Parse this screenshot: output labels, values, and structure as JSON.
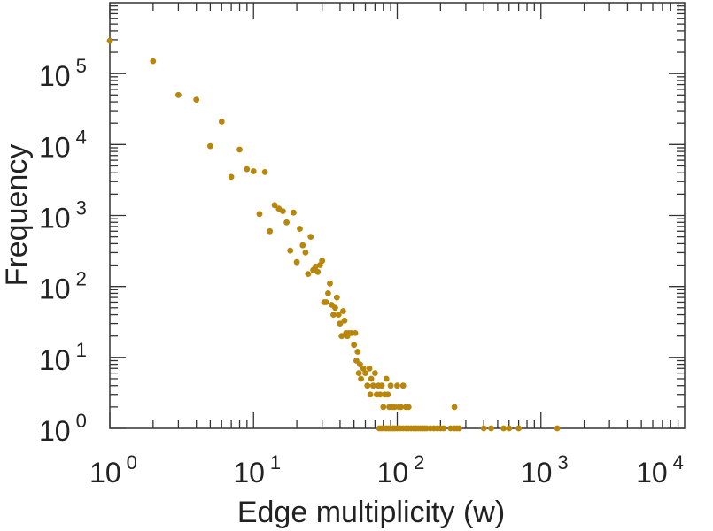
{
  "chart_data": {
    "type": "scatter",
    "title": "",
    "xlabel": "Edge multiplicity (w)",
    "ylabel": "Frequency",
    "xscale": "log",
    "yscale": "log",
    "xlim": [
      1,
      10000
    ],
    "ylim": [
      1,
      1000000
    ],
    "x_ticks": [
      {
        "value": 1,
        "base": "10",
        "exp": "0"
      },
      {
        "value": 10,
        "base": "10",
        "exp": "1"
      },
      {
        "value": 100,
        "base": "10",
        "exp": "2"
      },
      {
        "value": 1000,
        "base": "10",
        "exp": "3"
      },
      {
        "value": 10000,
        "base": "10",
        "exp": "4"
      }
    ],
    "y_ticks": [
      {
        "value": 1,
        "base": "10",
        "exp": "0"
      },
      {
        "value": 10,
        "base": "10",
        "exp": "1"
      },
      {
        "value": 100,
        "base": "10",
        "exp": "2"
      },
      {
        "value": 1000,
        "base": "10",
        "exp": "3"
      },
      {
        "value": 10000,
        "base": "10",
        "exp": "4"
      },
      {
        "value": 100000,
        "base": "10",
        "exp": "5"
      }
    ],
    "grid": false,
    "legend": "none",
    "marker_color": "#b8860b",
    "series": [
      {
        "points": [
          [
            1,
            290000
          ],
          [
            2,
            150000
          ],
          [
            3,
            50000
          ],
          [
            4,
            43000
          ],
          [
            5,
            9500
          ],
          [
            6,
            21000
          ],
          [
            7,
            3500
          ],
          [
            8,
            8500
          ],
          [
            9,
            4500
          ],
          [
            10,
            4200
          ],
          [
            12,
            4100
          ],
          [
            11,
            1050
          ],
          [
            13,
            600
          ],
          [
            14,
            1400
          ],
          [
            15,
            1250
          ],
          [
            16,
            1150
          ],
          [
            17,
            800
          ],
          [
            18,
            320
          ],
          [
            19,
            1100
          ],
          [
            20,
            220
          ],
          [
            21,
            650
          ],
          [
            22,
            380
          ],
          [
            23,
            300
          ],
          [
            24,
            150
          ],
          [
            25,
            500
          ],
          [
            26,
            170
          ],
          [
            27,
            190
          ],
          [
            28,
            160
          ],
          [
            29,
            200
          ],
          [
            30,
            230
          ],
          [
            31,
            60
          ],
          [
            32,
            60
          ],
          [
            33,
            80
          ],
          [
            34,
            110
          ],
          [
            35,
            55
          ],
          [
            36,
            40
          ],
          [
            37,
            50
          ],
          [
            38,
            70
          ],
          [
            39,
            40
          ],
          [
            40,
            30
          ],
          [
            41,
            20
          ],
          [
            42,
            45
          ],
          [
            43,
            33
          ],
          [
            44,
            22
          ],
          [
            45,
            20
          ],
          [
            46,
            22
          ],
          [
            48,
            22
          ],
          [
            50,
            15
          ],
          [
            51,
            22
          ],
          [
            52,
            9
          ],
          [
            53,
            12
          ],
          [
            54,
            6
          ],
          [
            55,
            8
          ],
          [
            56,
            5
          ],
          [
            58,
            7
          ],
          [
            60,
            6
          ],
          [
            62,
            4
          ],
          [
            64,
            7
          ],
          [
            65,
            3
          ],
          [
            66,
            5
          ],
          [
            68,
            4
          ],
          [
            70,
            6
          ],
          [
            72,
            3
          ],
          [
            74,
            4
          ],
          [
            76,
            3
          ],
          [
            78,
            4
          ],
          [
            80,
            2
          ],
          [
            82,
            3
          ],
          [
            84,
            5
          ],
          [
            86,
            3
          ],
          [
            88,
            2
          ],
          [
            90,
            4
          ],
          [
            93,
            2
          ],
          [
            96,
            2
          ],
          [
            100,
            4
          ],
          [
            103,
            2
          ],
          [
            106,
            2
          ],
          [
            110,
            4
          ],
          [
            115,
            2
          ],
          [
            120,
            2
          ],
          [
            250,
            2
          ],
          [
            75,
            1
          ],
          [
            78,
            1
          ],
          [
            81,
            1
          ],
          [
            84,
            1
          ],
          [
            87,
            1
          ],
          [
            90,
            1
          ],
          [
            93,
            1
          ],
          [
            96,
            1
          ],
          [
            100,
            1
          ],
          [
            105,
            1
          ],
          [
            110,
            1
          ],
          [
            115,
            1
          ],
          [
            120,
            1
          ],
          [
            125,
            1
          ],
          [
            130,
            1
          ],
          [
            135,
            1
          ],
          [
            140,
            1
          ],
          [
            145,
            1
          ],
          [
            150,
            1
          ],
          [
            155,
            1
          ],
          [
            160,
            1
          ],
          [
            170,
            1
          ],
          [
            180,
            1
          ],
          [
            190,
            1
          ],
          [
            200,
            1
          ],
          [
            210,
            1
          ],
          [
            235,
            1
          ],
          [
            250,
            1
          ],
          [
            260,
            1
          ],
          [
            270,
            1
          ],
          [
            400,
            1
          ],
          [
            450,
            1
          ],
          [
            550,
            1
          ],
          [
            600,
            1
          ],
          [
            700,
            1
          ],
          [
            1300,
            1
          ]
        ]
      }
    ]
  }
}
